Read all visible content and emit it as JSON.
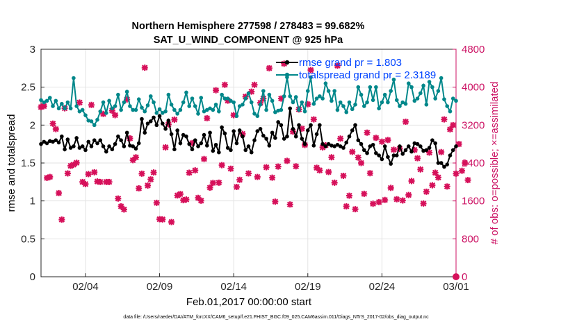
{
  "title": {
    "line1": "Northern Hemisphere 277598 / 278483 = 99.682%",
    "line2": "SAT_U_WIND_COMPONENT @ 925 hPa"
  },
  "footer": "data file: /Users/raeder/DAI/ATM_forcXX/CAM6_setup/f.e21.FHIST_BGC.f09_025.CAM6assim.011/Diags_NTrS_2017-02/obs_diag_output.nc",
  "colors": {
    "rmse": "#000000",
    "spread": "#00878a",
    "obs": "#d6105a",
    "legend_text": "#0044ff",
    "right_axis": "#cc1163"
  },
  "chart_data": {
    "type": "line",
    "xlabel": "Feb.01,2017 00:00:00 start",
    "ylabel": "rmse and totalspread",
    "ylabel_right": "# of obs: o=possible; ×=assimilated",
    "x_range_days": [
      1,
      29
    ],
    "ylim": [
      0,
      3
    ],
    "ylim_right": [
      0,
      4800
    ],
    "x_ticks": [
      {
        "day": 4,
        "label": "02/04"
      },
      {
        "day": 9,
        "label": "02/09"
      },
      {
        "day": 14,
        "label": "02/14"
      },
      {
        "day": 19,
        "label": "02/19"
      },
      {
        "day": 24,
        "label": "02/24"
      },
      {
        "day": 29,
        "label": "03/01"
      }
    ],
    "y_ticks": [
      "0",
      "0.5",
      "1",
      "1.5",
      "2",
      "2.5",
      "3"
    ],
    "y_ticks_right": [
      "0",
      "800",
      "1600",
      "2400",
      "3200",
      "4000",
      "4800"
    ],
    "legend": [
      {
        "label": "rmse grand pr = 1.803"
      },
      {
        "label": "totalspread grand pr = 2.3189"
      }
    ],
    "series": [
      {
        "name": "rmse",
        "values": [
          1.75,
          1.78,
          1.76,
          1.79,
          1.78,
          1.8,
          1.77,
          1.85,
          1.68,
          1.81,
          1.7,
          1.72,
          1.83,
          1.7,
          1.72,
          1.67,
          1.78,
          1.72,
          1.8,
          1.76,
          1.8,
          1.72,
          1.65,
          1.72,
          1.68,
          1.75,
          1.85,
          1.8,
          1.72,
          1.9,
          1.73,
          1.72,
          1.69,
          1.76,
          2.08,
          1.9,
          2.02,
          2.05,
          2.1,
          2.0,
          2.12,
          2.02,
          1.95,
          2.06,
          1.88,
          1.68,
          1.93,
          1.76,
          1.87,
          1.85,
          1.75,
          1.68,
          1.8,
          1.72,
          1.76,
          1.87,
          1.73,
          1.9,
          1.66,
          1.74,
          1.64,
          1.97,
          1.89,
          1.7,
          1.67,
          1.92,
          1.76,
          1.93,
          1.85,
          1.67,
          1.72,
          1.64,
          1.8,
          1.92,
          1.95,
          1.86,
          1.82,
          1.73,
          1.9,
          1.83,
          2.04,
          2.0,
          1.82,
          1.85,
          2.22,
          1.95,
          1.85,
          2.0,
          1.82,
          1.75,
          1.93,
          2.0,
          1.73,
          1.88,
          2.0,
          1.75,
          1.72,
          1.75,
          1.73,
          1.72,
          1.74,
          1.72,
          1.7,
          1.77,
          1.85,
          1.93,
          2.0,
          1.8,
          1.75,
          1.67,
          1.63,
          1.72,
          1.74,
          1.63,
          1.6,
          1.55,
          1.72,
          1.58,
          1.49,
          1.6,
          1.6,
          1.72,
          1.62,
          1.67,
          1.72,
          1.65,
          1.76,
          1.75,
          1.72,
          1.66,
          1.67,
          1.7,
          1.8,
          1.76,
          1.5,
          1.5,
          1.45,
          1.48,
          1.6,
          1.67,
          1.72
        ]
      },
      {
        "name": "totalspread",
        "values": [
          2.33,
          2.3,
          2.32,
          2.36,
          2.25,
          2.32,
          2.22,
          2.28,
          2.22,
          2.3,
          2.22,
          2.62,
          2.25,
          2.18,
          2.2,
          2.13,
          2.06,
          2.05,
          2.0,
          2.07,
          2.18,
          2.3,
          2.16,
          2.32,
          2.22,
          2.25,
          2.4,
          2.2,
          2.3,
          2.44,
          2.25,
          2.2,
          2.2,
          2.34,
          2.23,
          2.18,
          2.26,
          2.38,
          2.3,
          2.16,
          2.21,
          2.16,
          2.18,
          2.4,
          2.27,
          2.2,
          2.15,
          2.2,
          2.3,
          2.43,
          2.25,
          2.35,
          2.25,
          2.15,
          2.36,
          2.18,
          2.2,
          2.22,
          2.2,
          2.27,
          2.18,
          2.4,
          2.35,
          2.35,
          2.32,
          2.3,
          2.12,
          2.25,
          2.27,
          2.35,
          2.42,
          2.3,
          2.15,
          2.12,
          2.27,
          2.45,
          2.2,
          2.4,
          2.32,
          2.17,
          2.19,
          2.2,
          2.38,
          2.63,
          2.38,
          2.3,
          2.37,
          2.2,
          2.3,
          2.18,
          2.45,
          2.63,
          2.28,
          2.35,
          2.38,
          2.35,
          2.55,
          2.45,
          2.32,
          2.45,
          2.2,
          2.3,
          2.25,
          2.17,
          2.3,
          2.21,
          2.27,
          2.5,
          2.4,
          2.25,
          2.3,
          2.5,
          2.33,
          2.5,
          2.22,
          2.3,
          2.4,
          2.3,
          2.45,
          2.6,
          2.33,
          2.25,
          2.3,
          2.28,
          2.55,
          2.5,
          2.32,
          2.35,
          2.42,
          2.52,
          2.27,
          2.57,
          2.5,
          2.35,
          2.45,
          2.62,
          2.34,
          2.25,
          2.18,
          2.35,
          2.32
        ]
      },
      {
        "name": "observations assimilated",
        "values": [
          3580,
          3600,
          2085,
          2105,
          3230,
          3115,
          1765,
          1205,
          3555,
          2180,
          2340,
          2365,
          2405,
          3675,
          2000,
          1955,
          2165,
          3625,
          2205,
          2010,
          2000,
          3435,
          2000,
          2000,
          3505,
          3410,
          1650,
          1485,
          1420,
          3740,
          2920,
          2460,
          2520,
          1865,
          2175,
          4410,
          1925,
          2055,
          2200,
          1560,
          1215,
          1210,
          2730,
          3215,
          1155,
          3315,
          1715,
          1745,
          1615,
          1630,
          2195,
          2820,
          2245,
          1665,
          1605,
          2485,
          3345,
          1880,
          1980,
          3935,
          1985,
          2355,
          4050,
          3715,
          2280,
          3410,
          1895,
          2045,
          3015,
          3800,
          2180,
          3905,
          4050,
          2105,
          3670,
          3760,
          2310,
          4400,
          2090,
          1585,
          2325,
          3760,
          4495,
          2445,
          1525,
          3060,
          2330,
          3530,
          3125,
          2780,
          3640,
          4360,
          3320,
          2300,
          2245,
          2730,
          2775,
          2210,
          2520,
          1985,
          4455,
          2915,
          2130,
          1485,
          1710,
          2635,
          1425,
          2515,
          2400,
          1750,
          3040,
          2185,
          1540,
          2930,
          1575,
          2850,
          1620,
          2885,
          1875,
          2680,
          1635,
          2700,
          1610,
          3270,
          1725,
          2020,
          2675,
          2500,
          2265,
          1545,
          1795,
          2620,
          1930,
          2195,
          2095,
          2630,
          3320,
          1905,
          3110,
          3200,
          2175,
          2800,
          2235,
          2400,
          2040
        ]
      },
      {
        "name": "observations possible",
        "values": [
          0
        ]
      }
    ]
  }
}
